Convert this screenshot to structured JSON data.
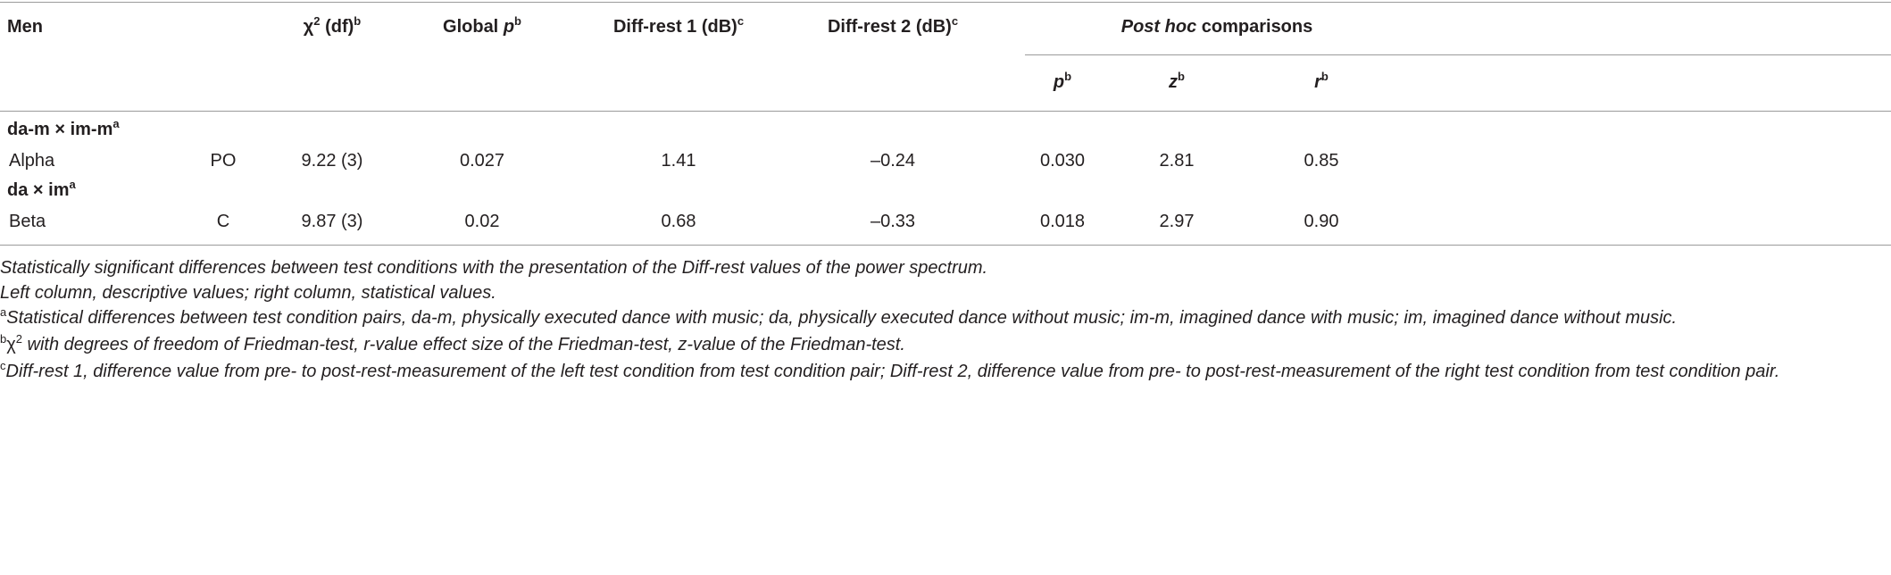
{
  "header": {
    "cells": [
      [
        {
          "text": "Men"
        }
      ],
      [
        {
          "text": "χ"
        },
        {
          "text": "2",
          "sup": true
        },
        {
          "text": " (df)"
        },
        {
          "text": "b",
          "sup": true
        }
      ],
      [
        {
          "text": "Global "
        },
        {
          "text": "p",
          "italic": true
        },
        {
          "text": "b",
          "sup": true
        }
      ],
      [
        {
          "text": "Diff-rest 1 (dB)"
        },
        {
          "text": "c",
          "sup": true
        }
      ],
      [
        {
          "text": "Diff-rest 2 (dB)"
        },
        {
          "text": "c",
          "sup": true
        }
      ],
      [
        {
          "text": "Post hoc",
          "italic": true
        },
        {
          "text": " comparisons"
        }
      ]
    ],
    "subcells": [
      [
        {
          "text": "p",
          "italic": true
        },
        {
          "text": "b",
          "sup": true
        }
      ],
      [
        {
          "text": "z",
          "italic": true
        },
        {
          "text": "b",
          "sup": true
        }
      ],
      [
        {
          "text": "r",
          "italic": true
        },
        {
          "text": "b",
          "sup": true
        }
      ]
    ]
  },
  "groups": [
    {
      "label": [
        {
          "text": "da-m × im-m"
        },
        {
          "text": "a",
          "sup": true
        }
      ],
      "rows": [
        [
          "Alpha",
          "PO",
          "9.22 (3)",
          "0.027",
          "1.41",
          "–0.24",
          "0.030",
          "2.81",
          "0.85"
        ]
      ]
    },
    {
      "label": [
        {
          "text": "da × im"
        },
        {
          "text": "a",
          "sup": true
        }
      ],
      "rows": [
        [
          "Beta",
          "C",
          "9.87 (3)",
          "0.02",
          "0.68",
          "–0.33",
          "0.018",
          "2.97",
          "0.90"
        ]
      ]
    }
  ],
  "footnotes": [
    [
      {
        "text": "Statistically significant differences between test conditions with the presentation of the Diff-rest values of the power spectrum.",
        "italic": true
      }
    ],
    [
      {
        "text": "Left column, descriptive values; right column, statistical values.",
        "italic": true
      }
    ],
    [
      {
        "text": "a",
        "sup": true
      },
      {
        "text": "Statistical differences between test condition pairs, da-m, physically executed dance with music; da, physically executed dance without music; im-m, imagined dance with music; im, imagined dance without music.",
        "italic": true
      }
    ],
    [
      {
        "text": "b",
        "sup": true
      },
      {
        "text": "χ"
      },
      {
        "text": "2",
        "sup": true
      },
      {
        "text": " with degrees of freedom of Friedman-test, r-value effect size of the Friedman-test, z-value of the Friedman-test.",
        "italic": true
      }
    ],
    [
      {
        "text": "c",
        "sup": true
      },
      {
        "text": "Diff-rest 1, difference value from pre- to post-rest-measurement of the left test condition from test condition pair; Diff-rest 2, difference value from pre- to post-rest-measurement of the right test condition from test condition pair.",
        "italic": true
      }
    ]
  ]
}
